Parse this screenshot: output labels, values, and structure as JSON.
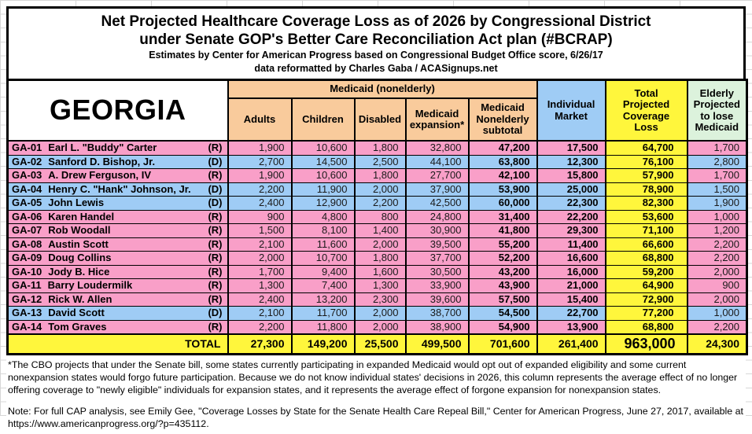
{
  "title": {
    "line1": "Net Projected Healthcare Coverage Loss as of 2026 by Congressional District",
    "line2": "under Senate GOP's Better Care Reconciliation Act plan (#BCRAP)",
    "line3": "Estimates by Center for American Progress based on Congressional Budget Office score, 6/26/17",
    "line4": "data reformatted by Charles Gaba / ACASignups.net"
  },
  "state_label": "GEORGIA",
  "header": {
    "medicaid_group": "Medicaid (nonelderly)",
    "columns": [
      "Adults",
      "Children",
      "Disabled",
      "Medicaid expansion*",
      "Medicaid Nonelderly subtotal"
    ],
    "individual_market": "Individual Market",
    "total_loss": "Total Projected Coverage Loss",
    "elderly": "Elderly Projected to lose Medicaid"
  },
  "colors": {
    "medicaid_header": "#F9CB9C",
    "individual_header": "#9FCCF5",
    "total_header": "#FFF63C",
    "elderly_header": "#DCF2DC",
    "republican_row": "#F99FC8",
    "democrat_row": "#9FCCF5"
  },
  "rows": [
    {
      "district": "GA-01",
      "name": "Earl L. \"Buddy\" Carter",
      "party": "R",
      "adults": "1,900",
      "children": "10,600",
      "disabled": "1,800",
      "expansion": "32,800",
      "subtotal": "47,200",
      "individual": "17,500",
      "total": "64,700",
      "elderly": "1,700"
    },
    {
      "district": "GA-02",
      "name": "Sanford D. Bishop, Jr.",
      "party": "D",
      "adults": "2,700",
      "children": "14,500",
      "disabled": "2,500",
      "expansion": "44,100",
      "subtotal": "63,800",
      "individual": "12,300",
      "total": "76,100",
      "elderly": "2,800"
    },
    {
      "district": "GA-03",
      "name": "A. Drew Ferguson, IV",
      "party": "R",
      "adults": "1,900",
      "children": "10,600",
      "disabled": "1,800",
      "expansion": "27,700",
      "subtotal": "42,100",
      "individual": "15,800",
      "total": "57,900",
      "elderly": "1,700"
    },
    {
      "district": "GA-04",
      "name": "Henry C. \"Hank\" Johnson, Jr.",
      "party": "D",
      "adults": "2,200",
      "children": "11,900",
      "disabled": "2,000",
      "expansion": "37,900",
      "subtotal": "53,900",
      "individual": "25,000",
      "total": "78,900",
      "elderly": "1,500"
    },
    {
      "district": "GA-05",
      "name": "John Lewis",
      "party": "D",
      "adults": "2,400",
      "children": "12,900",
      "disabled": "2,200",
      "expansion": "42,500",
      "subtotal": "60,000",
      "individual": "22,300",
      "total": "82,300",
      "elderly": "1,900"
    },
    {
      "district": "GA-06",
      "name": "Karen Handel",
      "party": "R",
      "adults": "900",
      "children": "4,800",
      "disabled": "800",
      "expansion": "24,800",
      "subtotal": "31,400",
      "individual": "22,200",
      "total": "53,600",
      "elderly": "1,000"
    },
    {
      "district": "GA-07",
      "name": "Rob Woodall",
      "party": "R",
      "adults": "1,500",
      "children": "8,100",
      "disabled": "1,400",
      "expansion": "30,900",
      "subtotal": "41,800",
      "individual": "29,300",
      "total": "71,100",
      "elderly": "1,200"
    },
    {
      "district": "GA-08",
      "name": "Austin Scott",
      "party": "R",
      "adults": "2,100",
      "children": "11,600",
      "disabled": "2,000",
      "expansion": "39,500",
      "subtotal": "55,200",
      "individual": "11,400",
      "total": "66,600",
      "elderly": "2,200"
    },
    {
      "district": "GA-09",
      "name": "Doug Collins",
      "party": "R",
      "adults": "2,000",
      "children": "10,700",
      "disabled": "1,800",
      "expansion": "37,700",
      "subtotal": "52,200",
      "individual": "16,600",
      "total": "68,800",
      "elderly": "2,200"
    },
    {
      "district": "GA-10",
      "name": "Jody B. Hice",
      "party": "R",
      "adults": "1,700",
      "children": "9,400",
      "disabled": "1,600",
      "expansion": "30,500",
      "subtotal": "43,200",
      "individual": "16,000",
      "total": "59,200",
      "elderly": "2,000"
    },
    {
      "district": "GA-11",
      "name": "Barry Loudermilk",
      "party": "R",
      "adults": "1,300",
      "children": "7,400",
      "disabled": "1,300",
      "expansion": "33,900",
      "subtotal": "43,900",
      "individual": "21,000",
      "total": "64,900",
      "elderly": "900"
    },
    {
      "district": "GA-12",
      "name": "Rick W. Allen",
      "party": "R",
      "adults": "2,400",
      "children": "13,200",
      "disabled": "2,300",
      "expansion": "39,600",
      "subtotal": "57,500",
      "individual": "15,400",
      "total": "72,900",
      "elderly": "2,000"
    },
    {
      "district": "GA-13",
      "name": "David Scott",
      "party": "D",
      "adults": "2,100",
      "children": "11,700",
      "disabled": "2,000",
      "expansion": "38,700",
      "subtotal": "54,500",
      "individual": "22,700",
      "total": "77,200",
      "elderly": "1,000"
    },
    {
      "district": "GA-14",
      "name": "Tom Graves",
      "party": "R",
      "adults": "2,200",
      "children": "11,800",
      "disabled": "2,000",
      "expansion": "38,900",
      "subtotal": "54,900",
      "individual": "13,900",
      "total": "68,800",
      "elderly": "2,200"
    }
  ],
  "total_row": {
    "label": "TOTAL",
    "adults": "27,300",
    "children": "149,200",
    "disabled": "25,500",
    "expansion": "499,500",
    "subtotal": "701,600",
    "individual": "261,400",
    "total": "963,000",
    "elderly": "24,300"
  },
  "footnotes": {
    "expansion_note": "*The CBO projects that under the Senate bill, some states currently participating in expanded Medicaid would opt out of expanded eligibility and some current nonexpansion states would forgo future participation. Because we do not know individual states' decisions in 2026, this column represents the average effect of no longer offering coverage to \"newly eligible\" individuals for expansion states, and it represents the average effect of forgone expansion for nonexpansion states.",
    "cap_note": "Note: For full CAP analysis, see Emily Gee, \"Coverage Losses by State for the Senate Health Care Repeal Bill,\" Center for American Progress, June 27, 2017, available at https://www.americanprogress.org/?p=435112."
  }
}
